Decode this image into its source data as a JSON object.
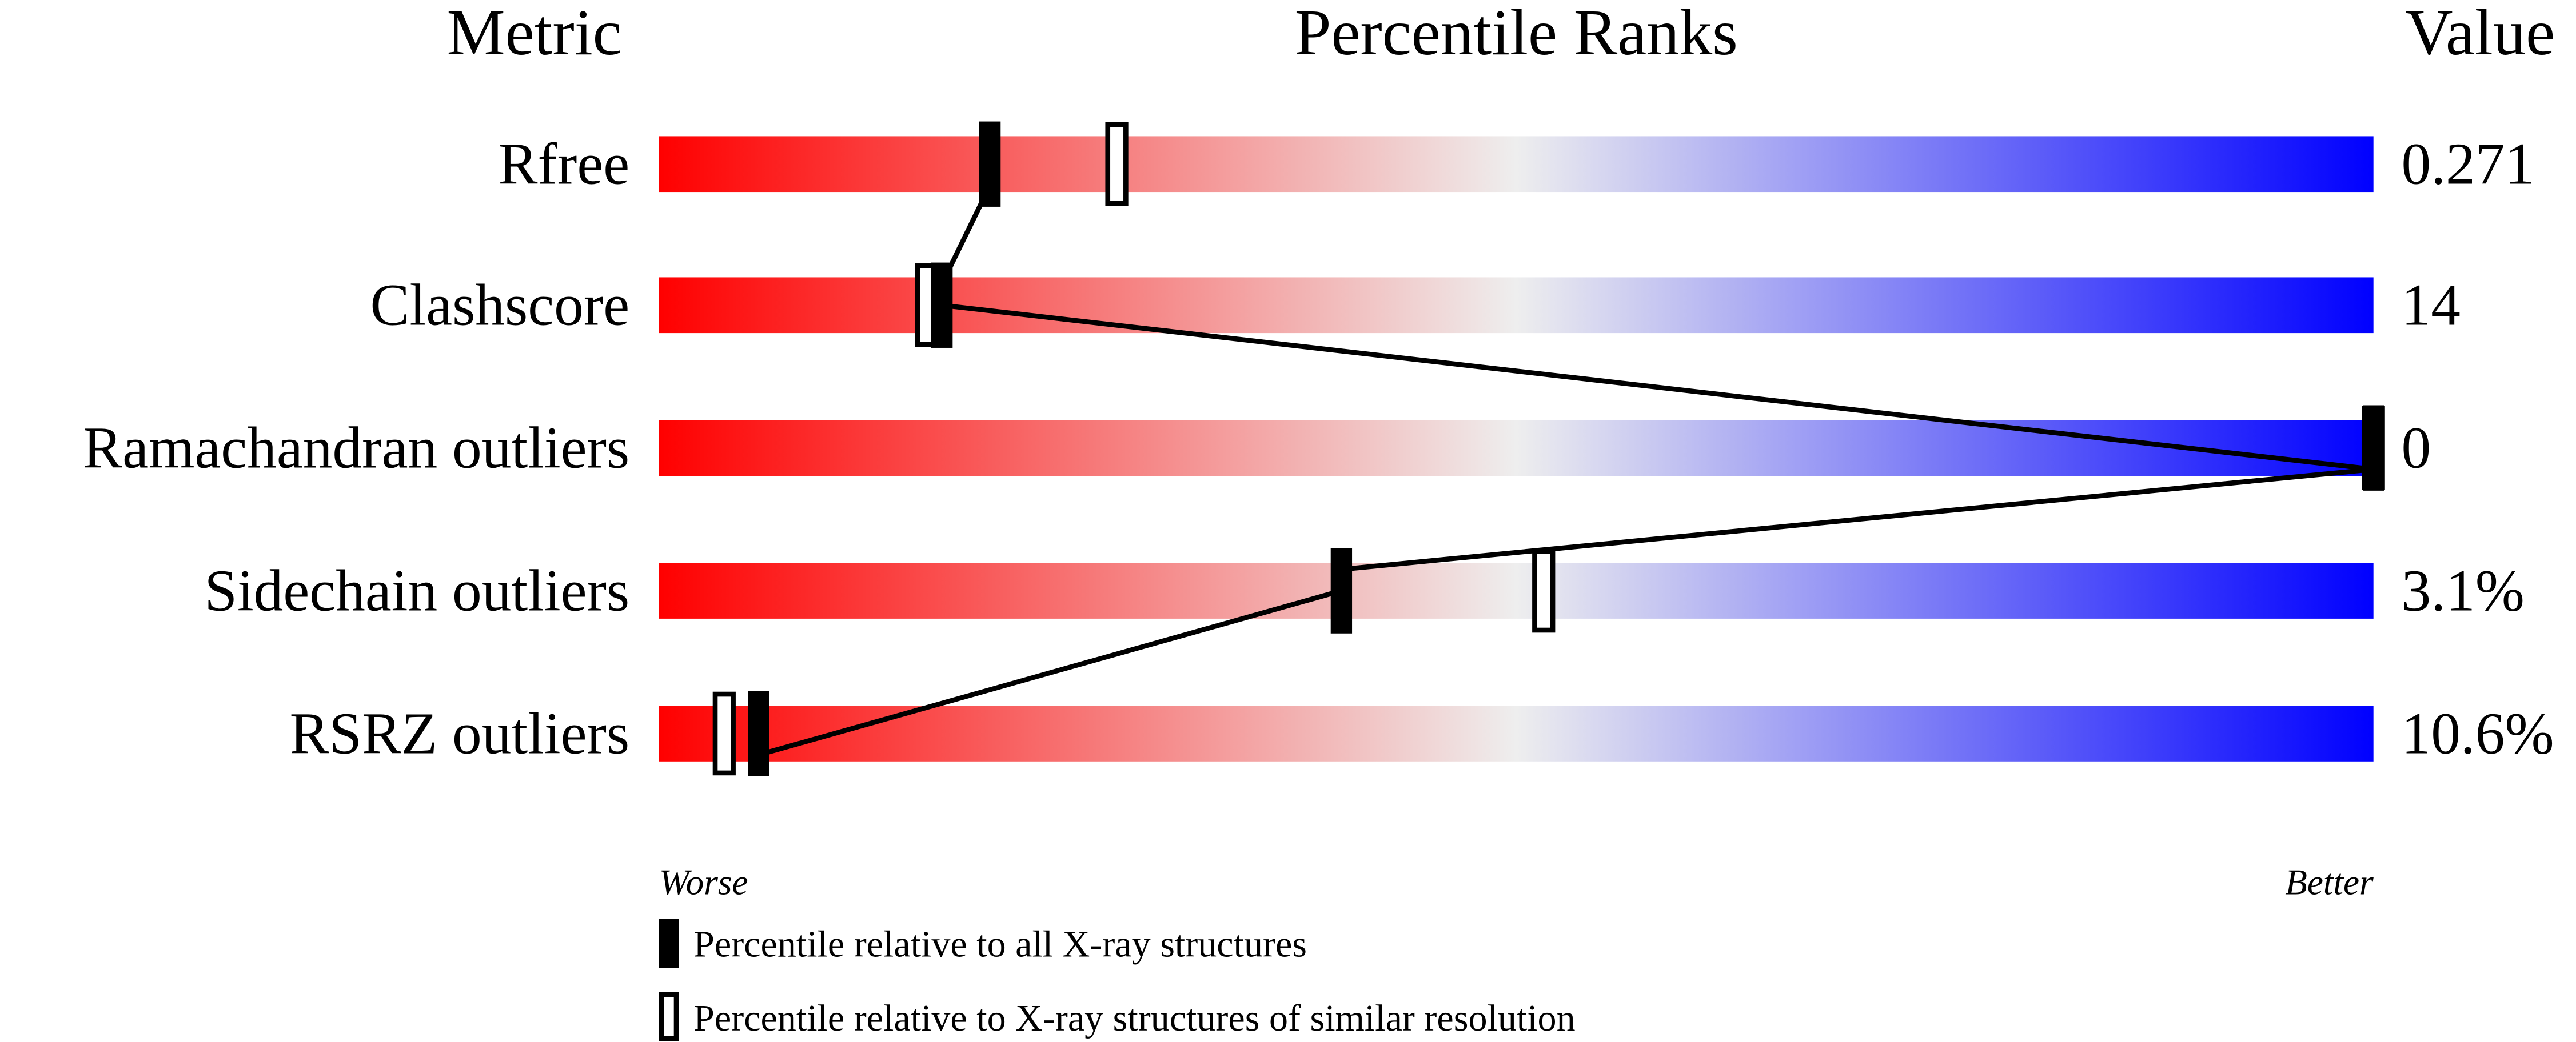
{
  "chart_data": {
    "type": "bar",
    "title": "Percentile Ranks",
    "header_metric": "Metric",
    "header_value": "Value",
    "xlim": [
      0,
      100
    ],
    "axis_left_label": "Worse",
    "axis_right_label": "Better",
    "gradient_colors": {
      "worse": "#ff0000",
      "middle": "#eeeeee",
      "better": "#0000ff"
    },
    "metrics": [
      {
        "name": "Rfree",
        "value": "0.271",
        "percentile_all": 19.3,
        "percentile_similar": 26.7
      },
      {
        "name": "Clashscore",
        "value": "14",
        "percentile_all": 16.5,
        "percentile_similar": 15.6
      },
      {
        "name": "Ramachandran outliers",
        "value": "0",
        "percentile_all": 100,
        "percentile_similar": 100
      },
      {
        "name": "Sidechain outliers",
        "value": "3.1%",
        "percentile_all": 39.8,
        "percentile_similar": 51.6
      },
      {
        "name": "RSRZ outliers",
        "value": "10.6%",
        "percentile_all": 5.8,
        "percentile_similar": 3.8
      }
    ],
    "legend": [
      {
        "marker": "filled",
        "label": "Percentile relative to all X-ray structures"
      },
      {
        "marker": "open",
        "label": "Percentile relative to X-ray structures of similar resolution"
      }
    ]
  }
}
